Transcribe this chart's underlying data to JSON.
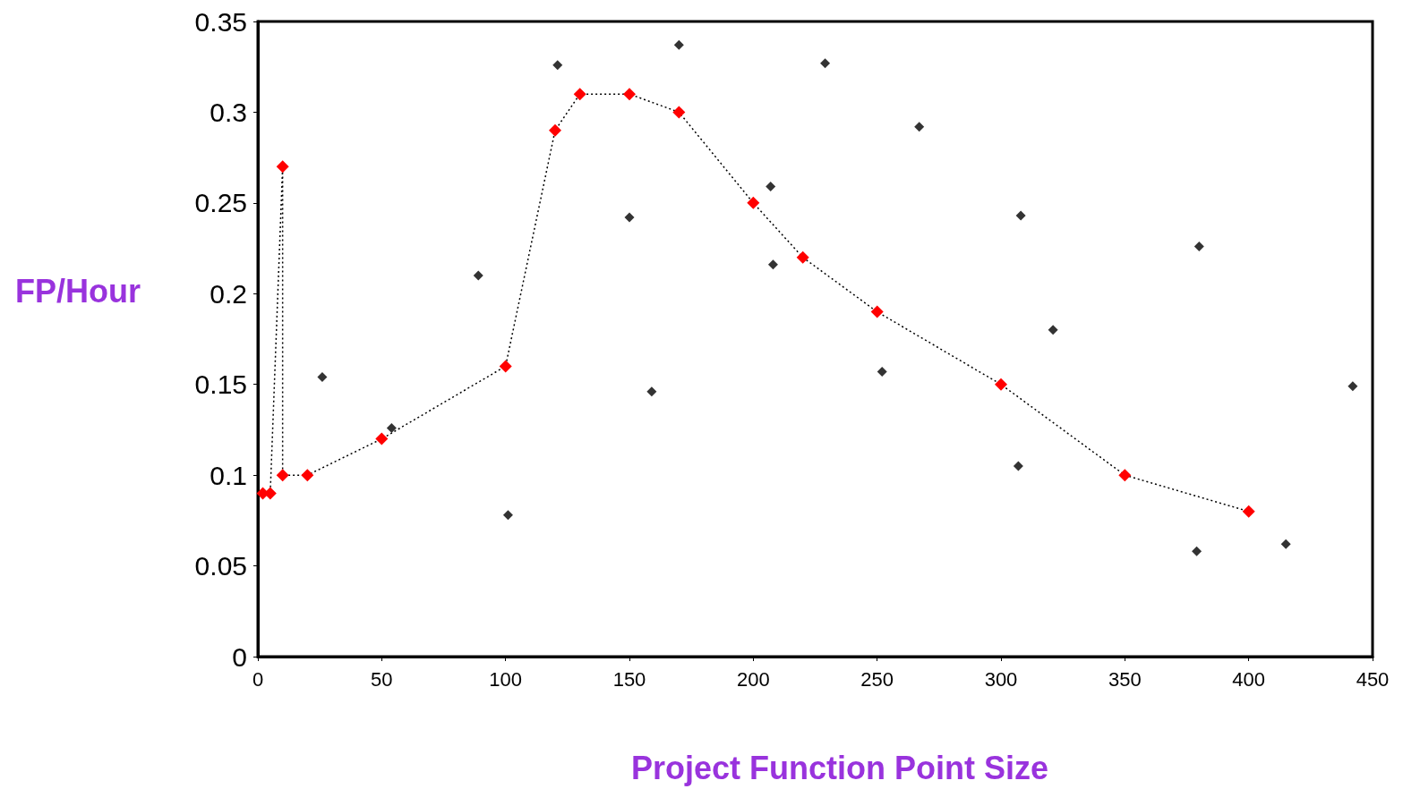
{
  "chart_data": {
    "type": "scatter",
    "xlabel": "Project Function Point Size",
    "ylabel": "FP/Hour",
    "xlim": [
      0,
      450
    ],
    "xticks": [
      0,
      50,
      100,
      150,
      200,
      250,
      300,
      350,
      400,
      450
    ],
    "ylim": [
      0,
      0.35
    ],
    "yticks": [
      0,
      0.05,
      0.1,
      0.15,
      0.2,
      0.25,
      0.3,
      0.35
    ],
    "grid": false,
    "marker": "diamond",
    "series": [
      {
        "color": "#000000",
        "x": [
          26,
          54,
          89,
          101,
          121,
          150,
          159,
          170,
          207,
          208,
          229,
          252,
          267,
          307,
          308,
          321,
          379,
          380,
          415,
          442
        ],
        "values": [
          0.154,
          0.126,
          0.21,
          0.078,
          0.326,
          0.242,
          0.146,
          0.337,
          0.259,
          0.216,
          0.327,
          0.157,
          0.292,
          0.105,
          0.243,
          0.18,
          0.058,
          0.226,
          0.062,
          0.149
        ]
      },
      {
        "type": "line",
        "color": "#ff0000",
        "line_style": "dotted",
        "x": [
          2,
          5,
          10,
          10,
          20,
          50,
          100,
          120,
          130,
          150,
          170,
          200,
          220,
          250,
          300,
          350,
          400
        ],
        "values": [
          0.09,
          0.09,
          0.27,
          0.1,
          0.1,
          0.12,
          0.16,
          0.29,
          0.31,
          0.31,
          0.3,
          0.25,
          0.22,
          0.19,
          0.15,
          0.1,
          0.08
        ]
      }
    ]
  }
}
